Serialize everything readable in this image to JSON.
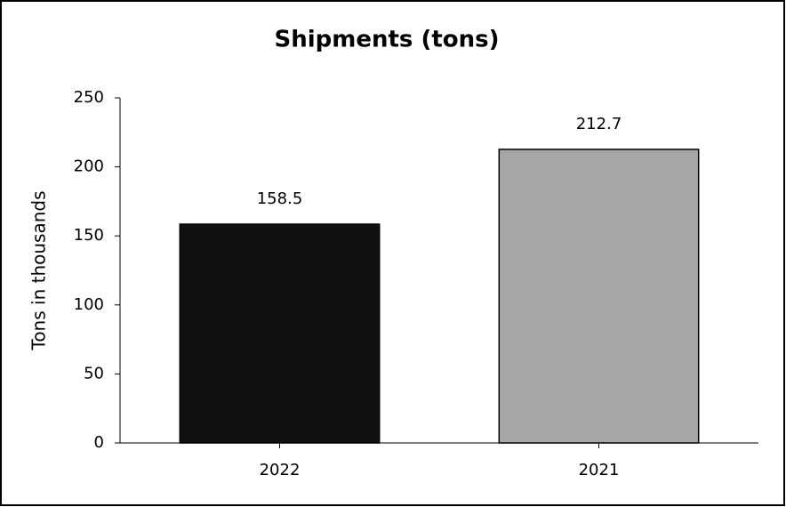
{
  "chart_data": {
    "type": "bar",
    "title": "Shipments (tons)",
    "y_label": "Tons in thousands",
    "categories": [
      "2022",
      "2021"
    ],
    "values": [
      158.5,
      212.7
    ],
    "colors": [
      "#111111",
      "#a6a6a6"
    ],
    "ylim": [
      0,
      250
    ],
    "yticks": [
      0,
      50,
      100,
      150,
      200,
      250
    ],
    "grid": false,
    "data_labels": true
  }
}
